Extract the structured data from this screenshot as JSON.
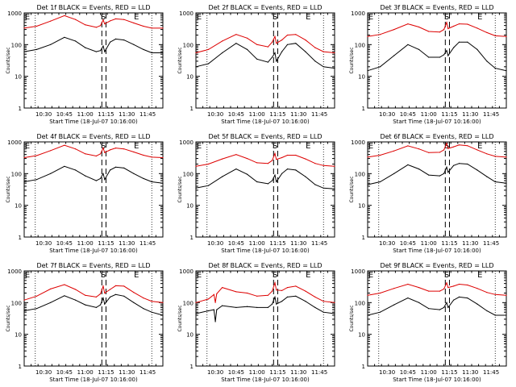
{
  "colors": {
    "events": "#000000",
    "lld": "#dd0000",
    "axis": "#000000",
    "background": "#ffffff"
  },
  "chart_data": [
    {
      "type": "line",
      "title": "Det 1f BLACK = Events, RED = LLD",
      "xlabel": "Start Time (18-Jul-07 10:16:00)",
      "ylabel": "Counts/sec",
      "yscale": "log",
      "ylim": [
        1,
        1000
      ],
      "xlim": [
        "10:16",
        "11:56"
      ],
      "xticks": [
        "10:30",
        "10:45",
        "11:00",
        "11:15",
        "11:30",
        "11:45"
      ],
      "yticks": [
        "1",
        "10",
        "100",
        "1000"
      ],
      "markers": [
        "E",
        "S",
        "E"
      ],
      "series": [
        {
          "name": "Events",
          "x": [
            "10:16",
            "10:25",
            "10:35",
            "10:45",
            "10:53",
            "11:00",
            "11:08",
            "11:11",
            "11:13",
            "11:14",
            "11:18",
            "11:22",
            "11:28",
            "11:35",
            "11:42",
            "11:48",
            "11:56"
          ],
          "y": [
            60,
            70,
            100,
            170,
            130,
            80,
            60,
            65,
            90,
            60,
            120,
            150,
            140,
            100,
            70,
            55,
            55
          ]
        },
        {
          "name": "LLD",
          "x": [
            "10:16",
            "10:25",
            "10:35",
            "10:45",
            "10:53",
            "11:00",
            "11:08",
            "11:11",
            "11:13",
            "11:14",
            "11:18",
            "11:22",
            "11:28",
            "11:35",
            "11:42",
            "11:48",
            "11:56"
          ],
          "y": [
            330,
            380,
            550,
            820,
            620,
            420,
            350,
            400,
            600,
            450,
            560,
            650,
            620,
            480,
            380,
            330,
            330
          ]
        }
      ]
    },
    {
      "type": "line",
      "title": "Det 2f BLACK = Events, RED = LLD",
      "xlabel": "Start Time (18-Jul-07 10:16:00)",
      "ylabel": "Counts/sec",
      "yscale": "log",
      "ylim": [
        1,
        1000
      ],
      "xlim": [
        "10:16",
        "11:56"
      ],
      "xticks": [
        "10:30",
        "10:45",
        "11:00",
        "11:15",
        "11:30",
        "11:45"
      ],
      "yticks": [
        "1",
        "10",
        "100",
        "1000"
      ],
      "markers": [
        "E",
        "S",
        "E"
      ],
      "series": [
        {
          "name": "Events",
          "x": [
            "10:16",
            "10:25",
            "10:35",
            "10:45",
            "10:53",
            "11:00",
            "11:08",
            "11:11",
            "11:13",
            "11:14",
            "11:18",
            "11:22",
            "11:28",
            "11:35",
            "11:42",
            "11:48",
            "11:56"
          ],
          "y": [
            20,
            25,
            55,
            110,
            70,
            35,
            28,
            40,
            55,
            30,
            60,
            100,
            110,
            60,
            30,
            20,
            18
          ]
        },
        {
          "name": "LLD",
          "x": [
            "10:16",
            "10:25",
            "10:35",
            "10:45",
            "10:53",
            "11:00",
            "11:08",
            "11:11",
            "11:13",
            "11:14",
            "11:18",
            "11:22",
            "11:28",
            "11:35",
            "11:42",
            "11:48",
            "11:56"
          ],
          "y": [
            55,
            70,
            130,
            210,
            160,
            100,
            85,
            120,
            180,
            110,
            140,
            200,
            210,
            140,
            80,
            60,
            55
          ]
        }
      ]
    },
    {
      "type": "line",
      "title": "Det 3f BLACK = Events, RED = LLD",
      "xlabel": "Start Time (18-Jul-07 10:16:00)",
      "ylabel": "Counts/sec",
      "yscale": "log",
      "ylim": [
        1,
        1000
      ],
      "xlim": [
        "10:16",
        "11:56"
      ],
      "xticks": [
        "10:30",
        "10:45",
        "11:00",
        "11:15",
        "11:30",
        "11:45"
      ],
      "yticks": [
        "1",
        "10",
        "100",
        "1000"
      ],
      "markers": [
        "E",
        "S",
        "E"
      ],
      "series": [
        {
          "name": "Events",
          "x": [
            "10:16",
            "10:25",
            "10:35",
            "10:45",
            "10:53",
            "11:00",
            "11:08",
            "11:11",
            "11:13",
            "11:14",
            "11:18",
            "11:22",
            "11:28",
            "11:35",
            "11:42",
            "11:48",
            "11:56"
          ],
          "y": [
            15,
            20,
            45,
            100,
            70,
            40,
            40,
            48,
            65,
            45,
            80,
            120,
            120,
            70,
            30,
            18,
            15
          ]
        },
        {
          "name": "LLD",
          "x": [
            "10:16",
            "10:25",
            "10:35",
            "10:45",
            "10:53",
            "11:00",
            "11:08",
            "11:11",
            "11:13",
            "11:14",
            "11:18",
            "11:22",
            "11:28",
            "11:35",
            "11:42",
            "11:48",
            "11:56"
          ],
          "y": [
            180,
            210,
            300,
            450,
            360,
            260,
            250,
            300,
            500,
            320,
            380,
            450,
            440,
            330,
            240,
            190,
            180
          ]
        }
      ]
    },
    {
      "type": "line",
      "title": "Det 4f BLACK = Events, RED = LLD",
      "xlabel": "Start Time (18-Jul-07 10:16:00)",
      "ylabel": "Counts/sec",
      "yscale": "log",
      "ylim": [
        1,
        1000
      ],
      "xlim": [
        "10:16",
        "11:56"
      ],
      "xticks": [
        "10:30",
        "10:45",
        "11:00",
        "11:15",
        "11:30",
        "11:45"
      ],
      "yticks": [
        "1",
        "10",
        "100",
        "1000"
      ],
      "markers": [
        "E",
        "S",
        "E"
      ],
      "series": [
        {
          "name": "Events",
          "x": [
            "10:16",
            "10:25",
            "10:35",
            "10:45",
            "10:53",
            "11:00",
            "11:08",
            "11:11",
            "11:13",
            "11:14",
            "11:18",
            "11:22",
            "11:28",
            "11:35",
            "11:42",
            "11:48",
            "11:56"
          ],
          "y": [
            55,
            65,
            100,
            170,
            130,
            85,
            60,
            70,
            100,
            65,
            130,
            160,
            150,
            100,
            70,
            55,
            50
          ]
        },
        {
          "name": "LLD",
          "x": [
            "10:16",
            "10:25",
            "10:35",
            "10:45",
            "10:53",
            "11:00",
            "11:08",
            "11:11",
            "11:13",
            "11:14",
            "11:18",
            "11:22",
            "11:28",
            "11:35",
            "11:42",
            "11:48",
            "11:56"
          ],
          "y": [
            320,
            370,
            530,
            780,
            600,
            420,
            360,
            420,
            650,
            460,
            560,
            640,
            600,
            480,
            380,
            330,
            320
          ]
        }
      ]
    },
    {
      "type": "line",
      "title": "Det 5f BLACK = Events, RED = LLD",
      "xlabel": "Start Time (18-Jul-07 10:16:00)",
      "ylabel": "Counts/sec",
      "yscale": "log",
      "ylim": [
        1,
        1000
      ],
      "xlim": [
        "10:16",
        "11:56"
      ],
      "xticks": [
        "10:30",
        "10:45",
        "11:00",
        "11:15",
        "11:30",
        "11:45"
      ],
      "yticks": [
        "1",
        "10",
        "100",
        "1000"
      ],
      "markers": [
        "E",
        "S",
        "E"
      ],
      "series": [
        {
          "name": "Events",
          "x": [
            "10:16",
            "10:25",
            "10:35",
            "10:45",
            "10:53",
            "11:00",
            "11:08",
            "11:11",
            "11:13",
            "11:14",
            "11:18",
            "11:22",
            "11:28",
            "11:35",
            "11:42",
            "11:48",
            "11:56"
          ],
          "y": [
            35,
            42,
            80,
            140,
            95,
            55,
            48,
            60,
            90,
            55,
            100,
            140,
            130,
            80,
            45,
            35,
            33
          ]
        },
        {
          "name": "LLD",
          "x": [
            "10:16",
            "10:25",
            "10:35",
            "10:45",
            "10:53",
            "11:00",
            "11:08",
            "11:11",
            "11:13",
            "11:14",
            "11:18",
            "11:22",
            "11:28",
            "11:35",
            "11:42",
            "11:48",
            "11:56"
          ],
          "y": [
            170,
            200,
            290,
            400,
            300,
            220,
            210,
            260,
            430,
            280,
            320,
            380,
            380,
            290,
            210,
            180,
            170
          ]
        }
      ]
    },
    {
      "type": "line",
      "title": "Det 6f BLACK = Events, RED = LLD",
      "xlabel": "Start Time (18-Jul-07 10:16:00)",
      "ylabel": "Counts/sec",
      "yscale": "log",
      "ylim": [
        1,
        1000
      ],
      "xlim": [
        "10:16",
        "11:56"
      ],
      "xticks": [
        "10:30",
        "10:45",
        "11:00",
        "11:15",
        "11:30",
        "11:45"
      ],
      "yticks": [
        "1",
        "10",
        "100",
        "1000"
      ],
      "markers": [
        "E",
        "S",
        "E"
      ],
      "series": [
        {
          "name": "Events",
          "x": [
            "10:16",
            "10:25",
            "10:35",
            "10:45",
            "10:53",
            "11:00",
            "11:08",
            "11:11",
            "11:13",
            "11:14",
            "11:18",
            "11:22",
            "11:28",
            "11:35",
            "11:42",
            "11:48",
            "11:56"
          ],
          "y": [
            45,
            55,
            100,
            190,
            140,
            90,
            85,
            100,
            160,
            110,
            180,
            210,
            200,
            130,
            80,
            55,
            50
          ]
        },
        {
          "name": "LLD",
          "x": [
            "10:16",
            "10:25",
            "10:35",
            "10:45",
            "10:53",
            "11:00",
            "11:08",
            "11:11",
            "11:13",
            "11:14",
            "11:18",
            "11:22",
            "11:28",
            "11:35",
            "11:42",
            "11:48",
            "11:56"
          ],
          "y": [
            330,
            380,
            520,
            750,
            600,
            460,
            470,
            560,
            900,
            620,
            700,
            800,
            760,
            560,
            420,
            350,
            330
          ]
        }
      ]
    },
    {
      "type": "line",
      "title": "Det 7f BLACK = Events, RED = LLD",
      "xlabel": "Start Time (18-Jul-07 10:16:00)",
      "ylabel": "Counts/sec",
      "yscale": "log",
      "ylim": [
        1,
        1000
      ],
      "xlim": [
        "10:16",
        "11:56"
      ],
      "xticks": [
        "10:30",
        "10:45",
        "11:00",
        "11:15",
        "11:30",
        "11:45"
      ],
      "yticks": [
        "1",
        "10",
        "100",
        "1000"
      ],
      "markers": [
        "E",
        "S",
        "E"
      ],
      "series": [
        {
          "name": "Events",
          "x": [
            "10:16",
            "10:25",
            "10:35",
            "10:45",
            "10:53",
            "11:00",
            "11:08",
            "11:11",
            "11:13",
            "11:14",
            "11:18",
            "11:22",
            "11:28",
            "11:35",
            "11:42",
            "11:48",
            "11:56"
          ],
          "y": [
            55,
            65,
            100,
            165,
            120,
            85,
            70,
            85,
            140,
            90,
            150,
            180,
            160,
            100,
            65,
            50,
            40
          ]
        },
        {
          "name": "LLD",
          "x": [
            "10:16",
            "10:25",
            "10:35",
            "10:45",
            "10:53",
            "11:00",
            "11:08",
            "11:11",
            "11:13",
            "11:14",
            "11:18",
            "11:22",
            "11:28",
            "11:35",
            "11:42",
            "11:48",
            "11:56"
          ],
          "y": [
            120,
            160,
            270,
            370,
            260,
            170,
            150,
            190,
            330,
            200,
            260,
            340,
            330,
            210,
            140,
            110,
            100
          ]
        }
      ]
    },
    {
      "type": "line",
      "title": "Det 8f BLACK = Events, RED = LLD",
      "xlabel": "Start Time (18-Jul-07 10:16:00)",
      "ylabel": "Counts/sec",
      "yscale": "log",
      "ylim": [
        1,
        1000
      ],
      "xlim": [
        "10:16",
        "11:56"
      ],
      "xticks": [
        "10:30",
        "10:45",
        "11:00",
        "11:15",
        "11:30",
        "11:45"
      ],
      "yticks": [
        "1",
        "10",
        "100",
        "1000"
      ],
      "markers": [
        "E",
        "S",
        "E"
      ],
      "series": [
        {
          "name": "Events",
          "x": [
            "10:16",
            "10:25",
            "10:29",
            "10:30",
            "10:31",
            "10:35",
            "10:45",
            "10:53",
            "11:00",
            "11:08",
            "11:11",
            "11:13",
            "11:14",
            "11:18",
            "11:22",
            "11:28",
            "11:35",
            "11:42",
            "11:48",
            "11:56"
          ],
          "y": [
            45,
            55,
            60,
            25,
            60,
            80,
            70,
            75,
            70,
            70,
            90,
            150,
            90,
            110,
            150,
            160,
            110,
            70,
            50,
            45
          ]
        },
        {
          "name": "LLD",
          "x": [
            "10:16",
            "10:25",
            "10:29",
            "10:30",
            "10:31",
            "10:35",
            "10:45",
            "10:53",
            "11:00",
            "11:08",
            "11:11",
            "11:13",
            "11:14",
            "11:18",
            "11:22",
            "11:28",
            "11:35",
            "11:42",
            "11:48",
            "11:56"
          ],
          "y": [
            100,
            130,
            180,
            100,
            190,
            300,
            220,
            200,
            160,
            170,
            230,
            420,
            250,
            240,
            300,
            330,
            230,
            150,
            110,
            100
          ]
        }
      ]
    },
    {
      "type": "line",
      "title": "Det 9f BLACK = Events, RED = LLD",
      "xlabel": "Start Time (18-Jul-07 10:16:00)",
      "ylabel": "Counts/sec",
      "yscale": "log",
      "ylim": [
        1,
        1000
      ],
      "xlim": [
        "10:16",
        "11:56"
      ],
      "xticks": [
        "10:30",
        "10:45",
        "11:00",
        "11:15",
        "11:30",
        "11:45"
      ],
      "yticks": [
        "1",
        "10",
        "100",
        "1000"
      ],
      "markers": [
        "E",
        "S",
        "E"
      ],
      "series": [
        {
          "name": "Events",
          "x": [
            "10:16",
            "10:25",
            "10:35",
            "10:45",
            "10:53",
            "11:00",
            "11:08",
            "11:11",
            "11:13",
            "11:14",
            "11:18",
            "11:22",
            "11:28",
            "11:35",
            "11:42",
            "11:48",
            "11:56"
          ],
          "y": [
            40,
            50,
            85,
            140,
            100,
            65,
            60,
            70,
            100,
            70,
            120,
            150,
            140,
            90,
            55,
            40,
            40
          ]
        },
        {
          "name": "LLD",
          "x": [
            "10:16",
            "10:25",
            "10:35",
            "10:45",
            "10:53",
            "11:00",
            "11:08",
            "11:11",
            "11:13",
            "11:14",
            "11:18",
            "11:22",
            "11:28",
            "11:35",
            "11:42",
            "11:48",
            "11:56"
          ],
          "y": [
            170,
            200,
            280,
            380,
            300,
            230,
            230,
            270,
            420,
            300,
            330,
            380,
            360,
            280,
            210,
            180,
            170
          ]
        }
      ]
    }
  ]
}
